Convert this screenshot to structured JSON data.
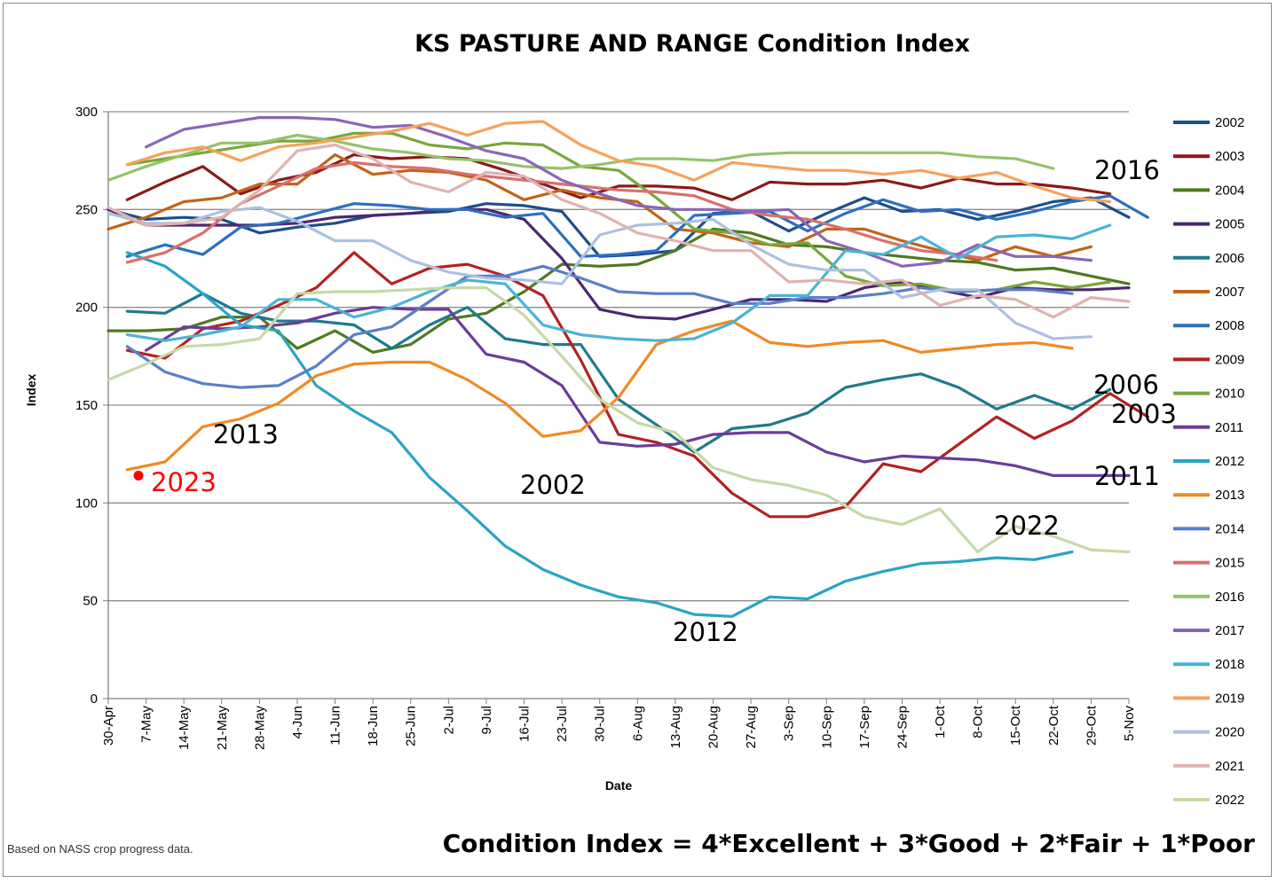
{
  "chart_data": {
    "type": "line",
    "title": "KS PASTURE AND RANGE Condition Index",
    "xlabel": "Date",
    "ylabel": "Index",
    "ylim": [
      0,
      300
    ],
    "yticks": [
      0,
      50,
      100,
      150,
      200,
      250,
      300
    ],
    "grid": "horizontal",
    "legend_position": "right",
    "x_tick_labels": [
      "30-Apr",
      "7-May",
      "14-May",
      "21-May",
      "28-May",
      "4-Jun",
      "11-Jun",
      "18-Jun",
      "25-Jun",
      "2-Jul",
      "9-Jul",
      "16-Jul",
      "23-Jul",
      "30-Jul",
      "6-Aug",
      "13-Aug",
      "20-Aug",
      "27-Aug",
      "3-Sep",
      "10-Sep",
      "17-Sep",
      "24-Sep",
      "1-Oct",
      "8-Oct",
      "15-Oct",
      "22-Oct",
      "29-Oct",
      "5-Nov"
    ],
    "series": [
      {
        "name": "2002",
        "color": "#1f4e8c",
        "start": 0,
        "values": [
          250,
          245,
          246,
          245,
          238,
          241,
          243,
          247,
          248,
          249,
          253,
          252,
          249,
          226,
          227,
          229,
          248,
          249,
          239,
          248,
          256,
          249,
          250,
          245,
          249,
          254,
          256,
          246
        ]
      },
      {
        "name": "2003",
        "color": "#8b1a1a",
        "start": 0.5,
        "values": [
          255,
          264,
          272,
          258,
          265,
          269,
          278,
          276,
          277,
          276,
          270,
          263,
          256,
          262,
          262,
          261,
          255,
          264,
          263,
          263,
          265,
          261,
          266,
          263,
          263,
          261,
          258
        ]
      },
      {
        "name": "2004",
        "color": "#4e7a1e",
        "start": 0,
        "values": [
          188,
          188,
          189,
          195,
          195,
          179,
          188,
          177,
          181,
          194,
          197,
          208,
          222,
          221,
          222,
          229,
          240,
          238,
          232,
          231,
          228,
          226,
          224,
          223,
          219,
          220,
          216,
          212
        ]
      },
      {
        "name": "2005",
        "color": "#4b2970",
        "start": 0,
        "values": [
          250,
          242,
          242,
          242,
          242,
          243,
          246,
          247,
          248,
          250,
          250,
          245,
          225,
          199,
          195,
          194,
          199,
          204,
          204,
          203,
          210,
          213,
          209,
          205,
          210,
          209,
          209,
          210
        ]
      },
      {
        "name": "2006",
        "color": "#1f7a8c",
        "start": 0.5,
        "values": [
          198,
          197,
          207,
          197,
          193,
          193,
          191,
          179,
          191,
          200,
          184,
          181,
          181,
          153,
          140,
          126,
          138,
          140,
          146,
          159,
          163,
          166,
          159,
          148,
          155,
          148,
          158
        ]
      },
      {
        "name": "2007",
        "color": "#c0651a",
        "start": 0,
        "values": [
          240,
          246,
          254,
          256,
          263,
          263,
          278,
          268,
          270,
          269,
          265,
          255,
          260,
          256,
          254,
          240,
          238,
          233,
          231,
          240,
          240,
          234,
          229,
          224,
          231,
          226,
          231
        ]
      },
      {
        "name": "2008",
        "color": "#2e6fbf",
        "start": 0.5,
        "values": [
          226,
          232,
          227,
          241,
          243,
          248,
          253,
          252,
          250,
          250,
          246,
          248,
          226,
          227,
          229,
          247,
          248,
          249,
          239,
          248,
          255,
          249,
          250,
          245,
          249,
          254,
          257,
          246
        ]
      },
      {
        "name": "2009",
        "color": "#b22222",
        "start": 0.5,
        "values": [
          178,
          174,
          189,
          193,
          201,
          210,
          228,
          212,
          220,
          222,
          216,
          206,
          173,
          135,
          131,
          124,
          105,
          93,
          93,
          98,
          120,
          116,
          130,
          144,
          133,
          142,
          156,
          144
        ]
      },
      {
        "name": "2010",
        "color": "#7aa63c",
        "start": 0.5,
        "values": [
          273,
          276,
          279,
          282,
          285,
          285,
          289,
          289,
          283,
          281,
          284,
          283,
          272,
          270,
          256,
          240,
          238,
          232,
          233,
          216,
          211,
          212,
          208,
          209,
          213,
          210,
          213
        ]
      },
      {
        "name": "2011",
        "color": "#6a3d9a",
        "start": 1,
        "values": [
          178,
          190,
          189,
          190,
          192,
          197,
          200,
          199,
          199,
          176,
          172,
          160,
          131,
          129,
          130,
          135,
          136,
          136,
          126,
          121,
          124,
          123,
          122,
          119,
          114,
          114,
          114
        ]
      },
      {
        "name": "2012",
        "color": "#2aa4c4",
        "start": 0.5,
        "values": [
          228,
          221,
          207,
          191,
          188,
          160,
          147,
          136,
          113,
          96,
          78,
          66,
          58,
          52,
          49,
          43,
          42,
          52,
          51,
          60,
          65,
          69,
          70,
          72,
          71,
          75
        ]
      },
      {
        "name": "2013",
        "color": "#f08a24",
        "start": 0.5,
        "values": [
          117,
          121,
          139,
          143,
          151,
          165,
          171,
          172,
          172,
          163,
          151,
          134,
          137,
          154,
          181,
          188,
          193,
          182,
          180,
          182,
          183,
          177,
          179,
          181,
          182,
          179
        ]
      },
      {
        "name": "2014",
        "color": "#5b7fc7",
        "start": 0.5,
        "values": [
          180,
          167,
          161,
          159,
          160,
          170,
          186,
          190,
          203,
          216,
          216,
          221,
          215,
          208,
          207,
          207,
          202,
          202,
          205,
          205,
          207,
          210,
          208,
          209,
          209,
          207
        ]
      },
      {
        "name": "2015",
        "color": "#d8706c",
        "start": 0.5,
        "values": [
          223,
          228,
          238,
          253,
          262,
          271,
          274,
          272,
          271,
          268,
          266,
          264,
          262,
          260,
          259,
          257,
          250,
          247,
          245,
          240,
          234,
          229,
          227,
          224
        ]
      },
      {
        "name": "2016",
        "color": "#94c36a",
        "start": 0,
        "values": [
          265,
          272,
          278,
          284,
          284,
          288,
          285,
          281,
          279,
          276,
          275,
          272,
          271,
          273,
          276,
          276,
          275,
          278,
          279,
          279,
          279,
          279,
          279,
          277,
          276,
          271
        ]
      },
      {
        "name": "2017",
        "color": "#8a66b8",
        "start": 1,
        "values": [
          282,
          291,
          294,
          297,
          297,
          296,
          292,
          293,
          287,
          280,
          276,
          265,
          258,
          252,
          250,
          250,
          249,
          250,
          234,
          228,
          221,
          223,
          232,
          226,
          226,
          224
        ]
      },
      {
        "name": "2018",
        "color": "#4bb3d6",
        "start": 0.5,
        "values": [
          186,
          183,
          186,
          190,
          204,
          204,
          195,
          200,
          208,
          214,
          212,
          191,
          186,
          184,
          183,
          184,
          192,
          206,
          206,
          229,
          227,
          236,
          225,
          236,
          237,
          235,
          242
        ]
      },
      {
        "name": "2019",
        "color": "#f5a25c",
        "start": 0.5,
        "values": [
          273,
          279,
          282,
          275,
          282,
          284,
          287,
          290,
          294,
          288,
          294,
          295,
          283,
          275,
          272,
          265,
          274,
          272,
          270,
          270,
          268,
          270,
          266,
          269,
          262,
          256,
          254
        ]
      },
      {
        "name": "2020",
        "color": "#adc0e0",
        "start": 0,
        "values": [
          248,
          243,
          243,
          249,
          251,
          244,
          234,
          234,
          224,
          218,
          215,
          214,
          212,
          237,
          242,
          243,
          245,
          232,
          222,
          219,
          219,
          205,
          209,
          209,
          192,
          184,
          185
        ]
      },
      {
        "name": "2021",
        "color": "#e0b3b0",
        "start": 0,
        "values": [
          251,
          242,
          243,
          246,
          260,
          280,
          283,
          276,
          264,
          259,
          269,
          267,
          255,
          248,
          238,
          234,
          229,
          229,
          213,
          214,
          212,
          214,
          201,
          206,
          204,
          195,
          205,
          203
        ]
      },
      {
        "name": "2022",
        "color": "#c5d9a8",
        "start": 0,
        "values": [
          163,
          171,
          180,
          181,
          184,
          207,
          208,
          208,
          209,
          210,
          210,
          196,
          175,
          153,
          141,
          136,
          118,
          112,
          109,
          104,
          93,
          89,
          97,
          75,
          88,
          83,
          76,
          75
        ]
      },
      {
        "name": "2023",
        "color": "#ff0000",
        "start": 0.8,
        "values": [
          114
        ]
      }
    ],
    "annotations": [
      {
        "text": "2016",
        "color": "#000000"
      },
      {
        "text": "2013",
        "color": "#000000"
      },
      {
        "text": "2023",
        "color": "#ff0000"
      },
      {
        "text": "2002",
        "color": "#000000"
      },
      {
        "text": "2006",
        "color": "#000000"
      },
      {
        "text": "2003",
        "color": "#000000"
      },
      {
        "text": "2011",
        "color": "#000000"
      },
      {
        "text": "2022",
        "color": "#000000"
      },
      {
        "text": "2012",
        "color": "#000000"
      }
    ]
  },
  "footnote": "Based on NASS crop progress data.",
  "formula": "Condition Index = 4*Excellent + 3*Good + 2*Fair + 1*Poor"
}
